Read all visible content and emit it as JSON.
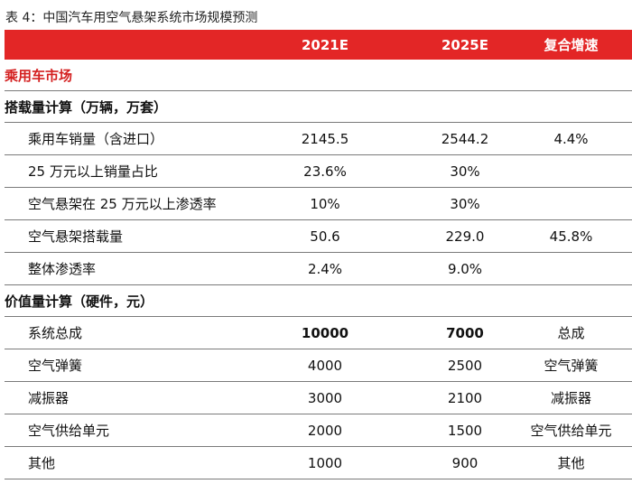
{
  "caption": "表 4：中国汽车用空气悬架系统市场规模预测",
  "header": {
    "col1": "2021E",
    "col2": "2025E",
    "col3": "复合增速"
  },
  "sections": {
    "passenger_market": "乘用车市场",
    "volume_calc": "搭载量计算（万辆，万套）",
    "value_calc": "价值量计算（硬件，元）"
  },
  "volume_rows": [
    {
      "label": "乘用车销量（含进口）",
      "v2021": "2145.5",
      "v2025": "2544.2",
      "cagr": "4.4%"
    },
    {
      "label": "25 万元以上销量占比",
      "v2021": "23.6%",
      "v2025": "30%",
      "cagr": ""
    },
    {
      "label": "空气悬架在 25 万元以上渗透率",
      "v2021": "10%",
      "v2025": "30%",
      "cagr": ""
    },
    {
      "label": "空气悬架搭载量",
      "v2021": "50.6",
      "v2025": "229.0",
      "cagr": "45.8%"
    },
    {
      "label": "整体渗透率",
      "v2021": "2.4%",
      "v2025": "9.0%",
      "cagr": ""
    }
  ],
  "value_rows": [
    {
      "label": "系统总成",
      "v2021": "10000",
      "v2025": "7000",
      "note": "总成"
    },
    {
      "label": "空气弹簧",
      "v2021": "4000",
      "v2025": "2500",
      "note": "空气弹簧"
    },
    {
      "label": "减振器",
      "v2021": "3000",
      "v2025": "2100",
      "note": "减振器"
    },
    {
      "label": "空气供给单元",
      "v2021": "2000",
      "v2025": "1500",
      "note": "空气供给单元"
    },
    {
      "label": "其他",
      "v2021": "1000",
      "v2025": "900",
      "note": "其他"
    }
  ],
  "colors": {
    "header_bg": "#e32626",
    "section_red": "#d42020",
    "rule": "#7a7a7a"
  }
}
